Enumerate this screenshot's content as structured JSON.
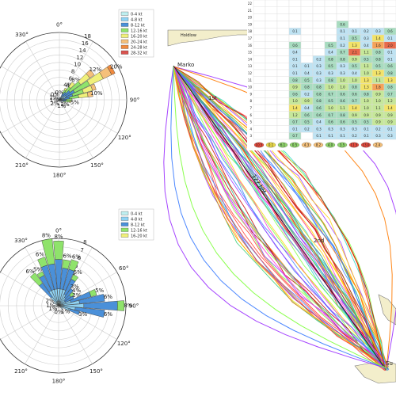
{
  "chart_data": [
    {
      "type": "polar_bar",
      "title": "",
      "angle_labels": [
        "0°",
        "30°",
        "60°",
        "90°",
        "120°",
        "150°",
        "180°",
        "210°",
        "240°",
        "270°",
        "300°",
        "330°"
      ],
      "radial_ticks": [
        2,
        4,
        6,
        8,
        10,
        12,
        14,
        16,
        18
      ],
      "rmax": 18,
      "legend": [
        "0-4 kt",
        "4-8 kt",
        "8-12 kt",
        "12-16 kt",
        "16-20 kt",
        "20-24 kt",
        "24-28 kt",
        "28-32 kt"
      ],
      "colors": [
        "#bfeff0",
        "#8fd3f4",
        "#4a90d9",
        "#8fe36b",
        "#f0f07a",
        "#f5c07a",
        "#f08a3e",
        "#d9534f"
      ],
      "sectors": [
        {
          "angle": 0,
          "stack": [
            0.3,
            0.3,
            0.2
          ],
          "label": "0%"
        },
        {
          "angle": 10,
          "stack": [
            0.3,
            0.2
          ],
          "label": ""
        },
        {
          "angle": 30,
          "stack": [
            0.5,
            0.6,
            0.8,
            1.0,
            0.6
          ],
          "label": "4%"
        },
        {
          "angle": 40,
          "stack": [
            0.5,
            0.7,
            1.3,
            1.8,
            1.5
          ],
          "label": "8%"
        },
        {
          "angle": 50,
          "stack": [
            0.5,
            1.0,
            2.0,
            3.5,
            3.0,
            1.5
          ],
          "label": "12%"
        },
        {
          "angle": 60,
          "stack": [
            0.5,
            1.5,
            2.5,
            4.5,
            4.0,
            2.5,
            1.0
          ],
          "label": "20%"
        },
        {
          "angle": 70,
          "stack": [
            0.5,
            1.2,
            2.0,
            3.0,
            2.5,
            1.0
          ],
          "label": ""
        },
        {
          "angle": 80,
          "stack": [
            0.4,
            0.8,
            1.5,
            2.5,
            2.5,
            1.3
          ],
          "label": "10%"
        },
        {
          "angle": 90,
          "stack": [
            0.3,
            0.6,
            1.0,
            1.5
          ],
          "label": ""
        },
        {
          "angle": 100,
          "stack": [
            0.3,
            0.6,
            0.8,
            1.0,
            0.4
          ],
          "label": "5%"
        },
        {
          "angle": 110,
          "stack": [
            0.3,
            0.4,
            0.5,
            0.5
          ],
          "label": ""
        },
        {
          "angle": 130,
          "stack": [
            0.3,
            0.3,
            0.3
          ],
          "label": "2%"
        },
        {
          "angle": 160,
          "stack": [
            0.4,
            0.3
          ],
          "label": "1%"
        },
        {
          "angle": 200,
          "stack": [
            0.4
          ],
          "label": ""
        },
        {
          "angle": 230,
          "stack": [
            0.4,
            0.2
          ],
          "label": "2%"
        },
        {
          "angle": 260,
          "stack": [
            0.4
          ],
          "label": "1%"
        },
        {
          "angle": 290,
          "stack": [
            0.4,
            0.2
          ],
          "label": "1%"
        },
        {
          "angle": 320,
          "stack": [
            0.5,
            0.3
          ],
          "label": "0%"
        }
      ]
    },
    {
      "type": "polar_bar",
      "title": "",
      "angle_labels": [
        "0°",
        "30°",
        "60°",
        "90°",
        "120°",
        "150°",
        "180°",
        "210°",
        "240°",
        "270°",
        "300°",
        "330°"
      ],
      "radial_ticks": [
        1,
        2,
        3,
        4,
        5,
        6,
        7,
        8
      ],
      "rmax": 8,
      "legend": [
        "0-4 kt",
        "4-8 kt",
        "8-12 kt",
        "12-16 kt",
        "16-20 kt"
      ],
      "colors": [
        "#bfeff0",
        "#8fd3f4",
        "#4a90d9",
        "#8fe36b",
        "#f0f07a"
      ],
      "sectors": [
        {
          "angle": 0,
          "stack": [
            0.5,
            1.5,
            3.5,
            2.2
          ],
          "label": "8%"
        },
        {
          "angle": 10,
          "stack": [
            0.5,
            1.5,
            2.5,
            1.0
          ],
          "label": "6%"
        },
        {
          "angle": 20,
          "stack": [
            0.5,
            1.5,
            2.5,
            1.2
          ],
          "label": "6%"
        },
        {
          "angle": 30,
          "stack": [
            0.5,
            1.0,
            2.0,
            0.6
          ],
          "label": "5%"
        },
        {
          "angle": 40,
          "stack": [
            0.4,
            0.8,
            1.3
          ],
          "label": "3%"
        },
        {
          "angle": 50,
          "stack": [
            0.3,
            0.6,
            0.9,
            0.5
          ],
          "label": "4%"
        },
        {
          "angle": 60,
          "stack": [
            0.3,
            0.6,
            1.1
          ],
          "label": "2%"
        },
        {
          "angle": 70,
          "stack": [
            0.5,
            1.0,
            2.5,
            0.7
          ],
          "label": "5%"
        },
        {
          "angle": 80,
          "stack": [
            0.5,
            2.0,
            3.0
          ],
          "label": "6%"
        },
        {
          "angle": 90,
          "stack": [
            0.5,
            2.5,
            4.0,
            0.8
          ],
          "label": "8%"
        },
        {
          "angle": 100,
          "stack": [
            0.5,
            1.5,
            3.5
          ],
          "label": "6%"
        },
        {
          "angle": 110,
          "stack": [
            0.4,
            1.0,
            1.2
          ],
          "label": "3%"
        },
        {
          "angle": 130,
          "stack": [
            0.3,
            0.3
          ],
          "label": "1%"
        },
        {
          "angle": 180,
          "stack": [
            0.3
          ],
          "label": "0%"
        },
        {
          "angle": 240,
          "stack": [
            0.3
          ],
          "label": "1%"
        },
        {
          "angle": 270,
          "stack": [
            0.3,
            0.2
          ],
          "label": "1%"
        },
        {
          "angle": 300,
          "stack": [
            0.4,
            0.3
          ],
          "label": "2%"
        },
        {
          "angle": 320,
          "stack": [
            0.3,
            1.0,
            2.0,
            1.5
          ],
          "label": "6%"
        },
        {
          "angle": 330,
          "stack": [
            0.5,
            1.5,
            2.0,
            0.5
          ],
          "label": "5%"
        },
        {
          "angle": 340,
          "stack": [
            0.5,
            1.5,
            3.0,
            1.0
          ],
          "label": "6%"
        },
        {
          "angle": 350,
          "stack": [
            0.5,
            1.5,
            3.0,
            3.0
          ],
          "label": "8%"
        }
      ]
    },
    {
      "type": "heatmap",
      "title": "",
      "rows": [
        [
          "",
          "",
          "",
          "",
          "",
          "",
          "",
          "",
          "",
          "",
          "",
          ""
        ],
        [
          "",
          "",
          "",
          "",
          "",
          "",
          "",
          "",
          "",
          "",
          "",
          ""
        ],
        [
          "",
          "",
          "",
          "",
          "",
          "",
          "",
          "",
          "",
          "",
          "",
          ""
        ],
        [
          "",
          "",
          "",
          "",
          "",
          "",
          "",
          "0.6",
          "",
          "",
          "",
          ""
        ],
        [
          "",
          "",
          "",
          "0.1",
          "",
          "",
          "",
          "0.1",
          "0.1",
          "0.2",
          "0.3",
          "0.6"
        ],
        [
          "",
          "",
          "",
          "",
          "",
          "",
          "",
          "0.1",
          "0.5",
          "0.3",
          "1.4",
          "0.1"
        ],
        [
          "",
          "",
          "",
          "0.6",
          "",
          "",
          "0.5",
          "0.2",
          "1.3",
          "0.4",
          "1.6",
          "2.0"
        ],
        [
          "",
          "",
          "",
          "0.4",
          "",
          "",
          "0.4",
          "0.7",
          "2.1",
          "1.1",
          "0.8",
          "0.1"
        ],
        [
          "",
          "",
          "",
          "0.1",
          "",
          "0.2",
          "0.8",
          "0.8",
          "0.9",
          "0.5",
          "0.8",
          "0.1"
        ],
        [
          "",
          "",
          "",
          "0.1",
          "0.1",
          "0.3",
          "0.5",
          "0.3",
          "0.5",
          "1.1",
          "0.5",
          "0.6"
        ],
        [
          "",
          "",
          "",
          "0.1",
          "0.4",
          "0.3",
          "0.3",
          "0.3",
          "0.4",
          "1.0",
          "1.3",
          "0.8"
        ],
        [
          "",
          "",
          "",
          "0.8",
          "0.5",
          "0.3",
          "0.8",
          "1.0",
          "1.0",
          "1.3",
          "1.1",
          "1.3"
        ],
        [
          "",
          "",
          "",
          "0.9",
          "0.8",
          "0.8",
          "1.0",
          "1.0",
          "0.8",
          "1.3",
          "1.8",
          "0.8"
        ],
        [
          "",
          "",
          "",
          "0.6",
          "0.2",
          "0.8",
          "0.7",
          "0.6",
          "0.6",
          "0.8",
          "0.9",
          "0.7"
        ],
        [
          "",
          "",
          "",
          "1.0",
          "0.9",
          "0.8",
          "0.5",
          "0.6",
          "0.7",
          "1.0",
          "1.0",
          "1.2"
        ],
        [
          "",
          "",
          "",
          "1.4",
          "0.4",
          "0.6",
          "1.0",
          "1.1",
          "1.4",
          "1.0",
          "1.1",
          "1.4"
        ],
        [
          "",
          "",
          "",
          "1.2",
          "0.6",
          "0.6",
          "0.7",
          "0.8",
          "0.9",
          "0.9",
          "0.9",
          "0.9"
        ],
        [
          "",
          "",
          "",
          "0.7",
          "0.5",
          "0.4",
          "0.6",
          "0.6",
          "0.5",
          "0.5",
          "0.9",
          "0.9"
        ],
        [
          "",
          "",
          "",
          "0.1",
          "0.2",
          "0.3",
          "0.3",
          "0.3",
          "0.3",
          "0.1",
          "0.2",
          "0.1"
        ],
        [
          "",
          "",
          "",
          "0.7",
          "",
          "0.1",
          "0.1",
          "0.1",
          "0.2",
          "0.1",
          "0.3",
          "0.3"
        ]
      ],
      "row_labels": [
        "22",
        "21",
        "20",
        "19",
        "18",
        "17",
        "16",
        "15",
        "14",
        "13",
        "12",
        "11",
        "10",
        "9",
        "8",
        "7",
        "6",
        "5",
        "4",
        "3"
      ],
      "summary": [
        "10.5",
        "0.1",
        "6.1",
        "0.5",
        "4.3",
        "8.2",
        "4.0",
        "3.5",
        "11.5",
        "13.0",
        "2.4"
      ]
    },
    {
      "type": "line",
      "title": "",
      "annotations": [
        "Marko",
        "1st",
        "2nd",
        "Su",
        "127 NM",
        "Holdlow"
      ]
    }
  ]
}
